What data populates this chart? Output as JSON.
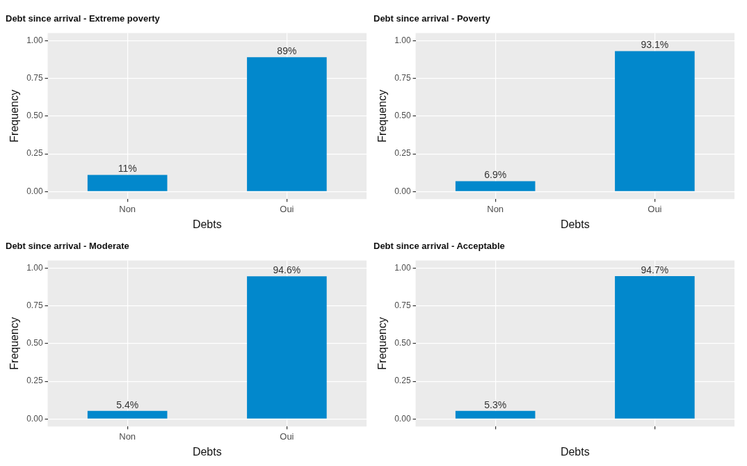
{
  "chart_data": [
    {
      "type": "bar",
      "title": "Debt since arrival - Extreme poverty",
      "xlabel": "Debts",
      "ylabel": "Frequency",
      "categories": [
        "Non",
        "Oui"
      ],
      "values": [
        0.11,
        0.89
      ],
      "value_labels": [
        "11%",
        "89%"
      ],
      "color": "#0288cc",
      "ylim": [
        -0.05,
        1.05
      ],
      "yticks": [
        {
          "value": 0,
          "label": "0.00"
        },
        {
          "value": 0.25,
          "label": "0.25"
        },
        {
          "value": 0.5,
          "label": "0.50"
        },
        {
          "value": 0.75,
          "label": "0.75"
        },
        {
          "value": 1,
          "label": "1.00"
        }
      ],
      "grid": true,
      "legend": false
    },
    {
      "type": "bar",
      "title": "Debt since arrival - Poverty",
      "xlabel": "Debts",
      "ylabel": "Frequency",
      "categories": [
        "Non",
        "Oui"
      ],
      "values": [
        0.069,
        0.931
      ],
      "value_labels": [
        "6.9%",
        "93.1%"
      ],
      "color": "#0288cc",
      "ylim": [
        -0.05,
        1.05
      ],
      "yticks": [
        {
          "value": 0,
          "label": "0.00"
        },
        {
          "value": 0.25,
          "label": "0.25"
        },
        {
          "value": 0.5,
          "label": "0.50"
        },
        {
          "value": 0.75,
          "label": "0.75"
        },
        {
          "value": 1,
          "label": "1.00"
        }
      ],
      "grid": true,
      "legend": false
    },
    {
      "type": "bar",
      "title": "Debt since arrival - Moderate",
      "xlabel": "Debts",
      "ylabel": "Frequency",
      "categories": [
        "Non",
        "Oui"
      ],
      "values": [
        0.054,
        0.946
      ],
      "value_labels": [
        "5.4%",
        "94.6%"
      ],
      "color": "#0288cc",
      "ylim": [
        -0.05,
        1.05
      ],
      "yticks": [
        {
          "value": 0,
          "label": "0.00"
        },
        {
          "value": 0.25,
          "label": "0.25"
        },
        {
          "value": 0.5,
          "label": "0.50"
        },
        {
          "value": 0.75,
          "label": "0.75"
        },
        {
          "value": 1,
          "label": "1.00"
        }
      ],
      "grid": true,
      "legend": false
    },
    {
      "type": "bar",
      "title": "Debt since arrival - Acceptable",
      "xlabel": "Debts",
      "ylabel": "Frequency",
      "categories": [
        null,
        null
      ],
      "values": [
        0.053,
        0.947
      ],
      "value_labels": [
        "5.3%",
        "94.7%"
      ],
      "color": "#0288cc",
      "ylim": [
        -0.05,
        1.05
      ],
      "yticks": [
        {
          "value": 0,
          "label": "0.00"
        },
        {
          "value": 0.25,
          "label": "0.25"
        },
        {
          "value": 0.5,
          "label": "0.50"
        },
        {
          "value": 0.75,
          "label": "0.75"
        },
        {
          "value": 1,
          "label": "1.00"
        }
      ],
      "grid": true,
      "legend": false,
      "tick_labels": "y"
    }
  ]
}
